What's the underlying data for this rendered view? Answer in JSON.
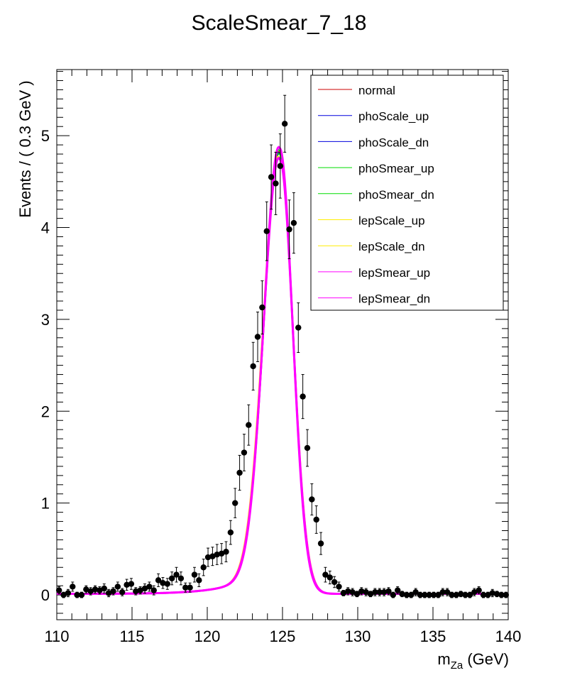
{
  "chart_data": {
    "type": "line",
    "title": "ScaleSmear_7_18",
    "xlabel": "m",
    "xlabel_sub": "Za",
    "xlabel_unit": " (GeV)",
    "ylabel": "Events / ( 0.3 GeV )",
    "xlim": [
      110,
      140
    ],
    "ylim": [
      -0.27,
      5.72
    ],
    "x_ticks": [
      110,
      115,
      120,
      125,
      130,
      135,
      140
    ],
    "y_ticks": [
      0,
      1,
      2,
      3,
      4,
      5
    ],
    "grid": false,
    "legend_position": "top-right",
    "series": [
      {
        "name": "normal",
        "color": "#cc0000",
        "peak": 4.8,
        "mean": 124.82,
        "sigma_l": 1.03,
        "sigma_r": 0.86,
        "tail": 0.012
      },
      {
        "name": "phoScale_up",
        "color": "#0000dd",
        "peak": 4.78,
        "mean": 124.85,
        "sigma_l": 1.03,
        "sigma_r": 0.86,
        "tail": 0.012
      },
      {
        "name": "phoScale_dn",
        "color": "#0000dd",
        "peak": 4.79,
        "mean": 124.8,
        "sigma_l": 1.03,
        "sigma_r": 0.86,
        "tail": 0.012
      },
      {
        "name": "phoSmear_up",
        "color": "#00dd00",
        "peak": 4.78,
        "mean": 124.83,
        "sigma_l": 1.04,
        "sigma_r": 0.87,
        "tail": 0.012
      },
      {
        "name": "phoSmear_dn",
        "color": "#00dd00",
        "peak": 4.82,
        "mean": 124.82,
        "sigma_l": 1.02,
        "sigma_r": 0.86,
        "tail": 0.012
      },
      {
        "name": "lepScale_up",
        "color": "#ffee00",
        "peak": 4.72,
        "mean": 124.84,
        "sigma_l": 1.06,
        "sigma_r": 0.88,
        "tail": 0.012
      },
      {
        "name": "lepScale_dn",
        "color": "#ffee00",
        "peak": 4.75,
        "mean": 124.78,
        "sigma_l": 1.05,
        "sigma_r": 0.88,
        "tail": 0.012
      },
      {
        "name": "lepSmear_up",
        "color": "#ff00ff",
        "peak": 4.73,
        "mean": 124.82,
        "sigma_l": 1.04,
        "sigma_r": 0.87,
        "tail": 0.012
      },
      {
        "name": "lepSmear_dn",
        "color": "#ff00ff",
        "peak": 4.85,
        "mean": 124.82,
        "sigma_l": 1.02,
        "sigma_r": 0.85,
        "tail": 0.012
      }
    ],
    "points": {
      "x": [
        110.15,
        110.45,
        110.75,
        111.05,
        111.35,
        111.65,
        111.95,
        112.25,
        112.55,
        112.85,
        113.15,
        113.45,
        113.75,
        114.05,
        114.35,
        114.65,
        114.95,
        115.25,
        115.55,
        115.85,
        116.15,
        116.45,
        116.75,
        117.05,
        117.35,
        117.65,
        117.95,
        118.25,
        118.55,
        118.85,
        119.15,
        119.45,
        119.75,
        120.05,
        120.35,
        120.65,
        120.95,
        121.25,
        121.55,
        121.85,
        122.15,
        122.45,
        122.75,
        123.05,
        123.35,
        123.65,
        123.95,
        124.25,
        124.55,
        124.85,
        125.15,
        125.45,
        125.75,
        126.05,
        126.35,
        126.65,
        126.95,
        127.25,
        127.55,
        127.85,
        128.15,
        128.45,
        128.75,
        129.05,
        129.35,
        129.65,
        129.95,
        130.25,
        130.55,
        130.85,
        131.15,
        131.45,
        131.75,
        132.05,
        132.35,
        132.65,
        132.95,
        133.25,
        133.55,
        133.85,
        134.15,
        134.45,
        134.75,
        135.05,
        135.35,
        135.65,
        135.95,
        136.25,
        136.55,
        136.85,
        137.15,
        137.45,
        137.75,
        138.05,
        138.35,
        138.65,
        138.95,
        139.25,
        139.55,
        139.85
      ],
      "y": [
        0.05,
        0.0,
        0.02,
        0.09,
        0.0,
        0.0,
        0.06,
        0.04,
        0.06,
        0.05,
        0.07,
        0.02,
        0.04,
        0.09,
        0.03,
        0.11,
        0.12,
        0.04,
        0.05,
        0.07,
        0.09,
        0.05,
        0.16,
        0.13,
        0.12,
        0.18,
        0.22,
        0.18,
        0.08,
        0.08,
        0.22,
        0.16,
        0.3,
        0.41,
        0.42,
        0.44,
        0.45,
        0.47,
        0.68,
        1.0,
        1.33,
        1.55,
        1.85,
        2.49,
        2.81,
        3.13,
        3.96,
        4.55,
        4.48,
        4.67,
        5.13,
        3.98,
        4.05,
        2.91,
        2.16,
        1.6,
        1.04,
        0.82,
        0.56,
        0.22,
        0.19,
        0.14,
        0.09,
        0.02,
        0.04,
        0.03,
        0.01,
        0.04,
        0.03,
        0.01,
        0.03,
        0.03,
        0.03,
        0.04,
        0.0,
        0.05,
        0.01,
        0.0,
        0.0,
        0.03,
        0.0,
        0.0,
        0.0,
        0.0,
        0.0,
        0.03,
        0.03,
        0.0,
        0.0,
        0.01,
        0.0,
        0.0,
        0.03,
        0.05,
        0.0,
        0.0,
        0.02,
        0.01,
        0.0,
        0.0
      ],
      "err": [
        0.04,
        0.03,
        0.04,
        0.05,
        0.03,
        0.03,
        0.04,
        0.04,
        0.04,
        0.04,
        0.05,
        0.04,
        0.04,
        0.05,
        0.04,
        0.06,
        0.06,
        0.04,
        0.04,
        0.05,
        0.05,
        0.05,
        0.07,
        0.06,
        0.06,
        0.07,
        0.08,
        0.07,
        0.05,
        0.05,
        0.08,
        0.07,
        0.09,
        0.1,
        0.1,
        0.11,
        0.11,
        0.11,
        0.13,
        0.16,
        0.19,
        0.2,
        0.22,
        0.26,
        0.27,
        0.29,
        0.32,
        0.35,
        0.34,
        0.35,
        0.31,
        0.32,
        0.33,
        0.27,
        0.24,
        0.2,
        0.17,
        0.15,
        0.12,
        0.08,
        0.07,
        0.06,
        0.05,
        0.03,
        0.04,
        0.04,
        0.03,
        0.04,
        0.04,
        0.03,
        0.04,
        0.04,
        0.04,
        0.04,
        0.03,
        0.04,
        0.03,
        0.03,
        0.03,
        0.04,
        0.03,
        0.03,
        0.03,
        0.03,
        0.03,
        0.04,
        0.04,
        0.03,
        0.03,
        0.03,
        0.03,
        0.03,
        0.04,
        0.04,
        0.03,
        0.03,
        0.04,
        0.03,
        0.03,
        0.03
      ]
    }
  }
}
